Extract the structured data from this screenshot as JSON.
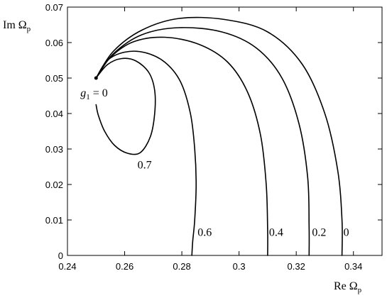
{
  "chart_data": {
    "type": "line",
    "xlabel": "Re Ω",
    "xlabel_sub": "p",
    "ylabel": "Im Ω",
    "ylabel_sub": "p",
    "xlim": [
      0.24,
      0.35
    ],
    "ylim": [
      0,
      0.07
    ],
    "xticks": [
      0.24,
      0.26,
      0.28,
      0.3,
      0.32,
      0.34
    ],
    "xtick_labels": [
      "0.24",
      "0.26",
      "0.28",
      "0.3",
      "0.32",
      "0.34"
    ],
    "yticks": [
      0,
      0.01,
      0.02,
      0.03,
      0.04,
      0.05,
      0.06,
      0.07
    ],
    "ytick_labels": [
      "0",
      "0.01",
      "0.02",
      "0.03",
      "0.04",
      "0.05",
      "0.06",
      "0.07"
    ],
    "grid": false,
    "legend": "none",
    "start_point": {
      "x": 0.25,
      "y": 0.05
    },
    "start_label": {
      "main": "g",
      "sub": "1",
      "rest": " = 0"
    },
    "series": [
      {
        "name": "0",
        "label_at": {
          "x": 0.3365,
          "y": 0.0055
        },
        "x": [
          0.25,
          0.256,
          0.266,
          0.279,
          0.295,
          0.31,
          0.322,
          0.33,
          0.3345,
          0.336,
          0.336
        ],
        "y": [
          0.05,
          0.0575,
          0.0635,
          0.0668,
          0.0665,
          0.063,
          0.054,
          0.04,
          0.024,
          0.01,
          0.0
        ]
      },
      {
        "name": "0.2",
        "label_at": {
          "x": 0.3255,
          "y": 0.0055
        },
        "x": [
          0.25,
          0.256,
          0.266,
          0.279,
          0.294,
          0.306,
          0.315,
          0.321,
          0.324,
          0.3245,
          0.3245
        ],
        "y": [
          0.05,
          0.0568,
          0.0622,
          0.0642,
          0.063,
          0.0585,
          0.05,
          0.037,
          0.022,
          0.008,
          0.0
        ]
      },
      {
        "name": "0.4",
        "label_at": {
          "x": 0.3105,
          "y": 0.0055
        },
        "x": [
          0.25,
          0.255,
          0.263,
          0.274,
          0.286,
          0.296,
          0.303,
          0.3075,
          0.3095,
          0.31,
          0.31
        ],
        "y": [
          0.05,
          0.0558,
          0.0602,
          0.0615,
          0.0595,
          0.0545,
          0.046,
          0.034,
          0.02,
          0.007,
          0.0
        ]
      },
      {
        "name": "0.6",
        "label_at": {
          "x": 0.2855,
          "y": 0.0055
        },
        "x": [
          0.25,
          0.254,
          0.26,
          0.267,
          0.274,
          0.2795,
          0.283,
          0.2845,
          0.285,
          0.2845,
          0.2838,
          0.2835
        ],
        "y": [
          0.05,
          0.055,
          0.0573,
          0.0572,
          0.0545,
          0.049,
          0.04,
          0.03,
          0.02,
          0.01,
          0.004,
          0.0
        ]
      },
      {
        "name": "0.7",
        "label_at": {
          "x": 0.2645,
          "y": 0.0245
        },
        "x": [
          0.25,
          0.254,
          0.259,
          0.264,
          0.2685,
          0.2705,
          0.2705,
          0.269,
          0.2655,
          0.261,
          0.2565,
          0.253,
          0.2508,
          0.25
        ],
        "y": [
          0.05,
          0.0538,
          0.0555,
          0.0548,
          0.0515,
          0.0465,
          0.04,
          0.0335,
          0.029,
          0.0288,
          0.031,
          0.035,
          0.0395,
          0.0425
        ]
      }
    ]
  }
}
